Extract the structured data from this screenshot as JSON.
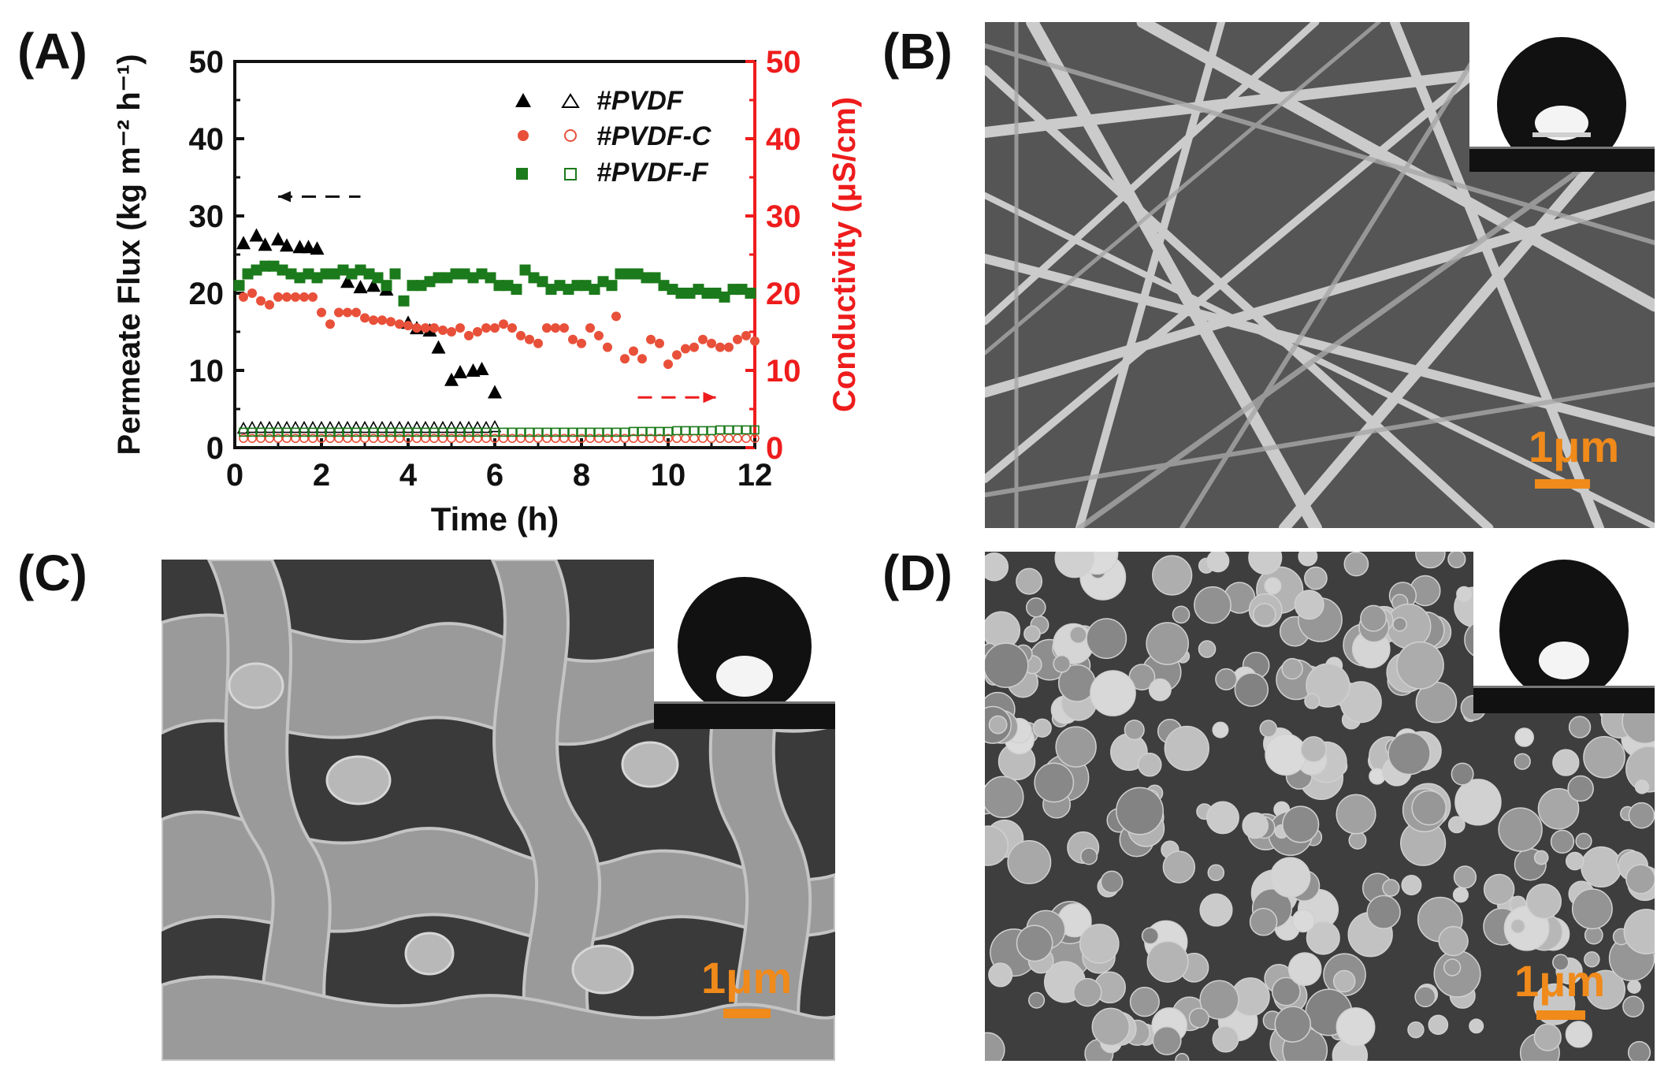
{
  "panels": {
    "a": "(A)",
    "b": "(B)",
    "c": "(C)",
    "d": "(D)"
  },
  "scale_bars": {
    "b": "1μm",
    "c": "1μm",
    "d": "1μm"
  },
  "colors": {
    "pvdf": "#000000",
    "pvdf_c": "#e8503a",
    "pvdf_f": "#1b7a1b",
    "right_axis": "#ee1c1c",
    "scale_bar": "#f08a1a"
  },
  "chart_data": {
    "type": "scatter",
    "xlabel": "Time (h)",
    "ylabel": "Permeate Flux (kg m⁻² h⁻¹)",
    "ylabel_right": "Conductivity (μS/cm)",
    "xlim": [
      0,
      12
    ],
    "ylim": [
      0,
      50
    ],
    "ylim_right": [
      0,
      50
    ],
    "xticks": [
      "0",
      "2",
      "4",
      "6",
      "8",
      "10",
      "12"
    ],
    "yticks": [
      "0",
      "10",
      "20",
      "30",
      "40",
      "50"
    ],
    "yticks_right": [
      "0",
      "10",
      "20",
      "30",
      "40",
      "50"
    ],
    "legend": [
      "#PVDF",
      "#PVDF-C",
      "#PVDF-F"
    ],
    "legend_position": "top-right",
    "series": [
      {
        "name": "#PVDF",
        "axis": "left",
        "marker": "filled-triangle",
        "x": [
          0.2,
          0.5,
          0.7,
          1.0,
          1.2,
          1.5,
          1.7,
          1.9,
          2.6,
          2.9,
          3.2,
          3.5,
          4.0,
          4.2,
          4.5,
          4.7,
          5.0,
          5.2,
          5.5,
          5.7,
          6.0
        ],
        "y": [
          26.5,
          27.5,
          26.3,
          27,
          26.2,
          26,
          26,
          25.8,
          21.5,
          20.8,
          21,
          20.5,
          16.2,
          15.5,
          15.2,
          13,
          8.8,
          9.8,
          10,
          10.2,
          7.2
        ]
      },
      {
        "name": "#PVDF",
        "axis": "right",
        "marker": "open-triangle",
        "x": [
          0.2,
          0.4,
          0.6,
          0.8,
          1.0,
          1.2,
          1.4,
          1.6,
          1.8,
          2.0,
          2.2,
          2.4,
          2.6,
          2.8,
          3.0,
          3.2,
          3.4,
          3.6,
          3.8,
          4.0,
          4.2,
          4.4,
          4.6,
          4.8,
          5.0,
          5.2,
          5.4,
          5.6,
          5.8,
          6.0
        ],
        "y": [
          2.5,
          2.6,
          2.6,
          2.6,
          2.6,
          2.6,
          2.6,
          2.6,
          2.6,
          2.6,
          2.6,
          2.6,
          2.6,
          2.6,
          2.6,
          2.6,
          2.6,
          2.6,
          2.6,
          2.6,
          2.6,
          2.6,
          2.6,
          2.6,
          2.6,
          2.6,
          2.6,
          2.6,
          2.6,
          2.7
        ]
      },
      {
        "name": "#PVDF-C",
        "axis": "left",
        "marker": "filled-circle",
        "x": [
          0.2,
          0.4,
          0.6,
          0.8,
          1.0,
          1.2,
          1.4,
          1.6,
          1.8,
          2.0,
          2.2,
          2.4,
          2.6,
          2.8,
          3.0,
          3.2,
          3.4,
          3.6,
          3.8,
          4.0,
          4.2,
          4.4,
          4.6,
          4.8,
          5.0,
          5.2,
          5.4,
          5.6,
          5.8,
          6.0,
          6.2,
          6.4,
          6.6,
          6.8,
          7.0,
          7.2,
          7.4,
          7.6,
          7.8,
          8.0,
          8.2,
          8.4,
          8.6,
          8.8,
          9.0,
          9.2,
          9.4,
          9.6,
          9.8,
          10.0,
          10.2,
          10.4,
          10.6,
          10.8,
          11.0,
          11.2,
          11.4,
          11.6,
          11.8,
          12.0
        ],
        "y": [
          19.5,
          20,
          19,
          18.5,
          19.5,
          19.5,
          19.5,
          19.5,
          19.5,
          17.5,
          16,
          17.5,
          17.5,
          17.5,
          16.8,
          16.5,
          16.5,
          16.3,
          16,
          15.8,
          15.5,
          15.5,
          15.5,
          15.2,
          15,
          15.5,
          14.5,
          15,
          15.5,
          15.5,
          16,
          15.5,
          14.5,
          14,
          13.5,
          15.5,
          15.5,
          15.5,
          14,
          13.5,
          15.5,
          14.5,
          13,
          17,
          11.5,
          12.5,
          11.5,
          14,
          13.5,
          10.8,
          12,
          12.8,
          13,
          14,
          13.5,
          13,
          13,
          14,
          14.5,
          13.8
        ]
      },
      {
        "name": "#PVDF-C",
        "axis": "right",
        "marker": "open-circle",
        "x": [
          0.2,
          0.4,
          0.6,
          0.8,
          1.0,
          1.2,
          1.4,
          1.6,
          1.8,
          2.0,
          2.2,
          2.4,
          2.6,
          2.8,
          3.0,
          3.2,
          3.4,
          3.6,
          3.8,
          4.0,
          4.2,
          4.4,
          4.6,
          4.8,
          5.0,
          5.2,
          5.4,
          5.6,
          5.8,
          6.0,
          6.2,
          6.4,
          6.6,
          6.8,
          7.0,
          7.2,
          7.4,
          7.6,
          7.8,
          8.0,
          8.2,
          8.4,
          8.6,
          8.8,
          9.0,
          9.2,
          9.4,
          9.6,
          9.8,
          10.0,
          10.2,
          10.4,
          10.6,
          10.8,
          11.0,
          11.2,
          11.4,
          11.6,
          11.8,
          12.0
        ],
        "y": [
          1.2,
          1.2,
          1.2,
          1.2,
          1.2,
          1.2,
          1.2,
          1.2,
          1.2,
          1.2,
          1.2,
          1.2,
          1.2,
          1.2,
          1.2,
          1.2,
          1.2,
          1.2,
          1.2,
          1.2,
          1.2,
          1.2,
          1.2,
          1.2,
          1.2,
          1.2,
          1.2,
          1.2,
          1.2,
          1.2,
          1.2,
          1.2,
          1.2,
          1.2,
          1.2,
          1.2,
          1.2,
          1.2,
          1.2,
          1.2,
          1.2,
          1.2,
          1.2,
          1.2,
          1.2,
          1.2,
          1.2,
          1.2,
          1.2,
          1.2,
          1.2,
          1.2,
          1.2,
          1.2,
          1.2,
          1.2,
          1.2,
          1.2,
          1.2,
          1.2
        ]
      },
      {
        "name": "#PVDF-F",
        "axis": "left",
        "marker": "filled-square",
        "x": [
          0.1,
          0.3,
          0.5,
          0.7,
          0.9,
          1.1,
          1.3,
          1.5,
          1.7,
          1.9,
          2.1,
          2.3,
          2.5,
          2.7,
          2.9,
          3.1,
          3.3,
          3.5,
          3.7,
          3.9,
          4.1,
          4.3,
          4.5,
          4.7,
          4.9,
          5.1,
          5.3,
          5.5,
          5.7,
          5.9,
          6.1,
          6.3,
          6.5,
          6.7,
          6.9,
          7.1,
          7.3,
          7.5,
          7.7,
          7.9,
          8.1,
          8.3,
          8.5,
          8.7,
          8.9,
          9.1,
          9.3,
          9.5,
          9.7,
          9.9,
          10.1,
          10.3,
          10.5,
          10.7,
          10.9,
          11.1,
          11.3,
          11.5,
          11.7,
          11.9
        ],
        "y": [
          21,
          22.5,
          23,
          23.5,
          23.5,
          23,
          22.5,
          22,
          22.5,
          22,
          22.5,
          22.5,
          23,
          22.5,
          23,
          22.5,
          22,
          21,
          22.5,
          19,
          21,
          21,
          21.5,
          22,
          22,
          22.5,
          22.5,
          22,
          22.5,
          22,
          21,
          21,
          20.5,
          23,
          22,
          21.5,
          20.5,
          21,
          20.5,
          21,
          21,
          20.5,
          21.5,
          21,
          22.5,
          22.5,
          22.5,
          22,
          22,
          21,
          20.5,
          20,
          20,
          20.5,
          20,
          20,
          19.5,
          20.5,
          20.5,
          20
        ]
      },
      {
        "name": "#PVDF-F",
        "axis": "right",
        "marker": "open-square",
        "x": [
          0.2,
          0.4,
          0.6,
          0.8,
          1.0,
          1.2,
          1.4,
          1.6,
          1.8,
          2.0,
          2.2,
          2.4,
          2.6,
          2.8,
          3.0,
          3.2,
          3.4,
          3.6,
          3.8,
          4.0,
          4.2,
          4.4,
          4.6,
          4.8,
          5.0,
          5.2,
          5.4,
          5.6,
          5.8,
          6.0,
          6.2,
          6.4,
          6.6,
          6.8,
          7.0,
          7.2,
          7.4,
          7.6,
          7.8,
          8.0,
          8.2,
          8.4,
          8.6,
          8.8,
          9.0,
          9.2,
          9.4,
          9.6,
          9.8,
          10.0,
          10.2,
          10.4,
          10.6,
          10.8,
          11.0,
          11.2,
          11.4,
          11.6,
          11.8,
          12.0
        ],
        "y": [
          2,
          2,
          2,
          2,
          2,
          2,
          2,
          2,
          2,
          2,
          2,
          2,
          2,
          2,
          2,
          2,
          2,
          2,
          2,
          2,
          2,
          2,
          2,
          2,
          2,
          2,
          2,
          2,
          2,
          2,
          2,
          2,
          2,
          2,
          2,
          2,
          2,
          2,
          2,
          2,
          2,
          2,
          2,
          2,
          2,
          2.1,
          2.1,
          2.1,
          2.1,
          2.1,
          2.2,
          2.2,
          2.2,
          2.2,
          2.2,
          2.3,
          2.3,
          2.3,
          2.3,
          2.3
        ]
      }
    ],
    "annotations": [
      {
        "type": "dashed-arrow",
        "direction": "left",
        "x": [
          1.0,
          2.9
        ],
        "y": 32.5,
        "axis": "left"
      },
      {
        "type": "dashed-arrow",
        "direction": "right",
        "x": [
          9.3,
          11.1
        ],
        "y": 6.5,
        "axis": "right"
      }
    ]
  }
}
